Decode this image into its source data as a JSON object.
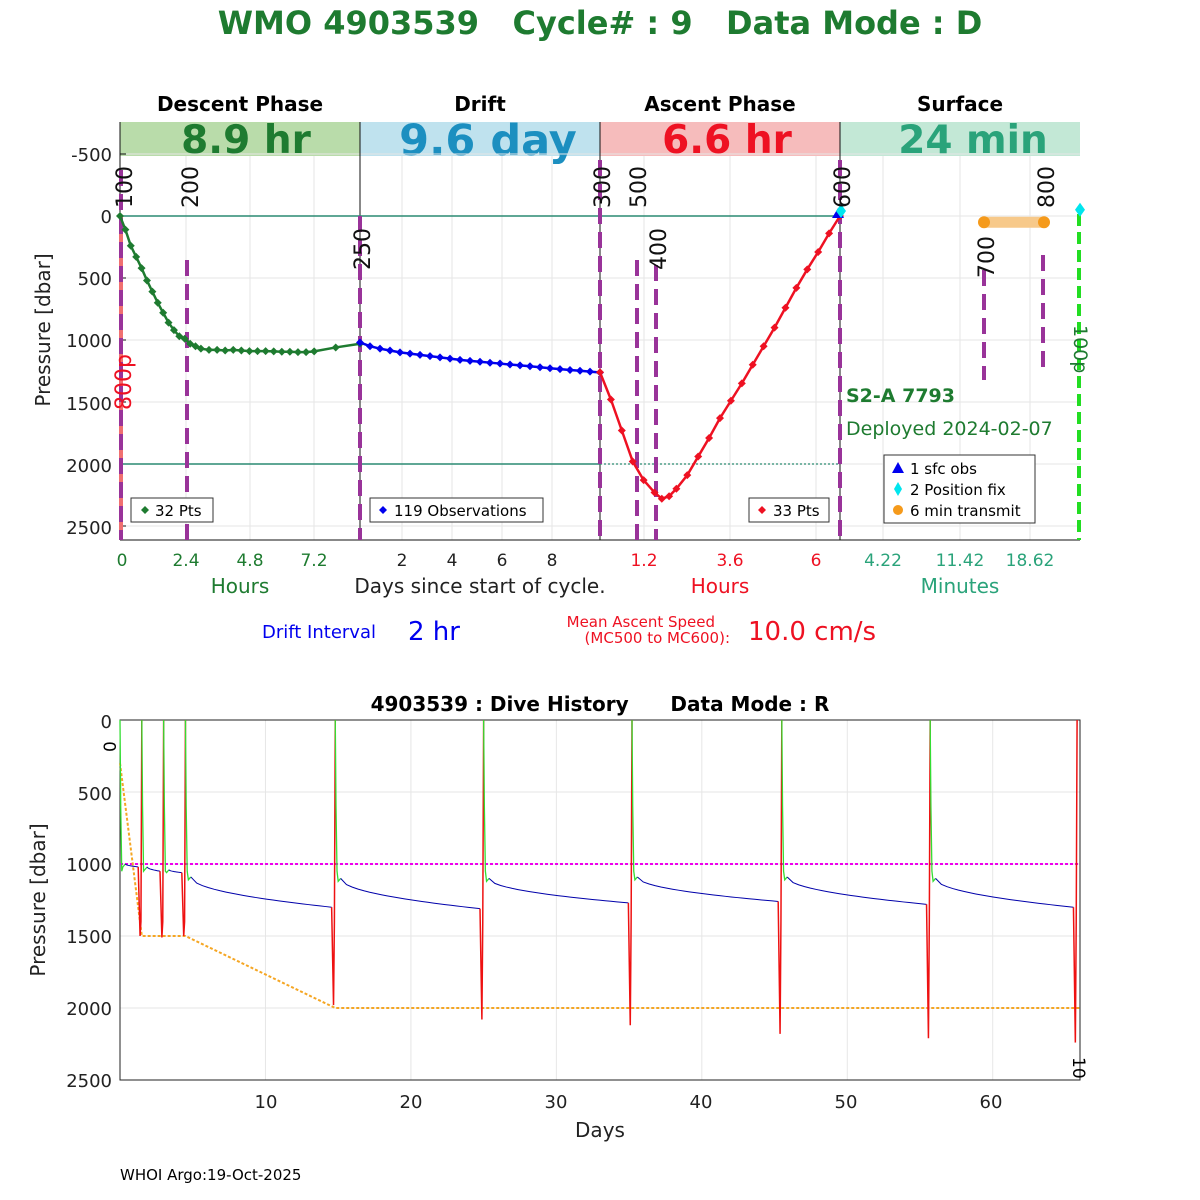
{
  "header": {
    "title": "WMO 4903539   Cycle# : 9   Data Mode : D",
    "title_color": "#1e7b30"
  },
  "panels": [
    {
      "key": "descent",
      "label": "Descent Phase",
      "duration": "8.9 hr",
      "band_color": "#b9dcaa",
      "text_color": "#1e7b30"
    },
    {
      "key": "drift",
      "label": "Drift",
      "duration": "9.6 day",
      "band_color": "#bfe2ee",
      "text_color": "#1c8fc0"
    },
    {
      "key": "ascent",
      "label": "Ascent Phase",
      "duration": "6.6 hr",
      "band_color": "#f6bcbc",
      "text_color": "#ee1122"
    },
    {
      "key": "surface",
      "label": "Surface",
      "duration": "24 min",
      "band_color": "#c3e8d6",
      "text_color": "#2aa37a"
    }
  ],
  "top_axes": {
    "ylabel": "Pressure [dbar]",
    "yticks": [
      "-500",
      "0",
      "500",
      "1000",
      "1500",
      "2000",
      "2500"
    ],
    "x_tick_groups": [
      {
        "panel": "descent",
        "ticks": [
          "0",
          "2.4",
          "4.8",
          "7.2"
        ],
        "color": "#1e7b30"
      },
      {
        "panel": "drift",
        "ticks": [
          "2",
          "4",
          "6",
          "8"
        ],
        "color": "#222222"
      },
      {
        "panel": "ascent",
        "ticks": [
          "1.2",
          "3.6",
          "6"
        ],
        "color": "#ee1122"
      },
      {
        "panel": "surface",
        "ticks": [
          "4.22",
          "11.42",
          "18.62"
        ],
        "color": "#2aa37a"
      }
    ],
    "x_unit_labels": [
      {
        "text": "Hours",
        "color": "#1e7b30"
      },
      {
        "text": "Days since start of cycle.",
        "color": "#222222"
      },
      {
        "text": "Hours",
        "color": "#ee1122"
      },
      {
        "text": "Minutes",
        "color": "#2aa37a"
      }
    ],
    "mission_codes": [
      "100",
      "200",
      "250",
      "300",
      "500",
      "400",
      "600",
      "700",
      "800",
      "100p",
      "800p"
    ],
    "float_name": "S2-A 7793",
    "deploy_text": "Deployed 2024-02-07",
    "legends": [
      {
        "text": "32 Pts",
        "color": "#1e7b30"
      },
      {
        "text": "119 Observations",
        "color": "#0000ee"
      },
      {
        "text": "33 Pts",
        "color": "#ee1122"
      }
    ],
    "surface_legend": [
      {
        "text": "1 sfc obs",
        "color": "#0000ee",
        "marker": "triangle"
      },
      {
        "text": "2 Position fix",
        "color": "#00e5ee",
        "marker": "diamond"
      },
      {
        "text": "6 min transmit",
        "color": "#f59a1b",
        "marker": "circle"
      }
    ]
  },
  "info": {
    "drift_label": "Drift Interval",
    "drift_value": "2 hr",
    "ascent_label_line1": "Mean Ascent Speed",
    "ascent_label_line2": "(MC500 to MC600):",
    "ascent_value": "10.0 cm/s"
  },
  "bottom": {
    "title": "4903539 : Dive History      Data Mode : R",
    "xlabel": "Days",
    "ylabel": "Pressure [dbar]",
    "xticks": [
      "10",
      "20",
      "30",
      "40",
      "50",
      "60"
    ],
    "yticks": [
      "0",
      "500",
      "1000",
      "1500",
      "2000",
      "2500"
    ],
    "start_label": "0",
    "end_label": "10"
  },
  "footer": "WHOI Argo:19-Oct-2025",
  "chart_data": [
    {
      "type": "line",
      "title": "",
      "ylabel": "Pressure [dbar]",
      "ylim": [
        2600,
        -600
      ],
      "y_reversed": true,
      "grid": true,
      "segments": {
        "descent": {
          "xunit": "hours",
          "xlim": [
            0,
            8.9
          ],
          "series": [
            {
              "name": "32 Pts",
              "color": "#1e7b30",
              "x": [
                0,
                0.2,
                0.4,
                0.6,
                0.8,
                1.0,
                1.2,
                1.4,
                1.6,
                1.8,
                2.0,
                2.2,
                2.4,
                2.6,
                2.8,
                3.0,
                3.3,
                3.6,
                3.9,
                4.2,
                4.5,
                4.8,
                5.1,
                5.4,
                5.7,
                6.0,
                6.3,
                6.6,
                6.9,
                7.2,
                8.0,
                8.9
              ],
              "y": [
                0,
                110,
                240,
                330,
                420,
                520,
                610,
                700,
                780,
                860,
                920,
                970,
                990,
                1030,
                1050,
                1070,
                1080,
                1080,
                1085,
                1080,
                1085,
                1090,
                1090,
                1090,
                1092,
                1095,
                1095,
                1098,
                1098,
                1092,
                1060,
                1030
              ]
            }
          ]
        },
        "drift": {
          "xunit": "days",
          "xlim": [
            0,
            9.6
          ],
          "series": [
            {
              "name": "119 Observations",
              "color": "#0000ee",
              "x": [
                0,
                0.4,
                0.8,
                1.2,
                1.6,
                2.0,
                2.4,
                2.8,
                3.2,
                3.6,
                4.0,
                4.4,
                4.8,
                5.2,
                5.6,
                6.0,
                6.4,
                6.8,
                7.2,
                7.6,
                8.0,
                8.4,
                8.8,
                9.2,
                9.6
              ],
              "y": [
                1020,
                1050,
                1070,
                1085,
                1100,
                1110,
                1120,
                1130,
                1140,
                1150,
                1160,
                1168,
                1175,
                1183,
                1190,
                1198,
                1205,
                1212,
                1220,
                1228,
                1235,
                1242,
                1248,
                1255,
                1262
              ]
            }
          ]
        },
        "ascent": {
          "xunit": "hours",
          "xlim": [
            0,
            6.6
          ],
          "series": [
            {
              "name": "33 Pts",
              "color": "#ee1122",
              "x": [
                0,
                0.3,
                0.6,
                0.9,
                1.2,
                1.5,
                1.7,
                1.9,
                2.1,
                2.4,
                2.7,
                3.0,
                3.3,
                3.6,
                3.9,
                4.2,
                4.5,
                4.8,
                5.1,
                5.4,
                5.7,
                6.0,
                6.3,
                6.6
              ],
              "y": [
                1260,
                1480,
                1730,
                1980,
                2130,
                2230,
                2280,
                2260,
                2200,
                2090,
                1940,
                1790,
                1630,
                1490,
                1350,
                1200,
                1050,
                900,
                740,
                580,
                430,
                290,
                140,
                0
              ]
            }
          ]
        },
        "surface": {
          "xunit": "minutes",
          "xlim": [
            0,
            24
          ],
          "series": [
            {
              "name": "6 min transmit",
              "color": "#f59a1b",
              "x": [
                14.4,
                20.4
              ],
              "y": [
                50,
                50
              ]
            },
            {
              "name": "1 sfc obs",
              "color": "#0000ee",
              "x": [
                0
              ],
              "y": [
                0
              ]
            },
            {
              "name": "2 Position fix",
              "color": "#00e5ee",
              "x": [
                0.1,
                24.0
              ],
              "y": [
                -40,
                -50
              ]
            }
          ]
        }
      }
    },
    {
      "type": "line",
      "title": "4903539 : Dive History      Data Mode : R",
      "xlabel": "Days",
      "ylabel": "Pressure [dbar]",
      "xlim": [
        0,
        66
      ],
      "ylim": [
        2500,
        0
      ],
      "y_reversed": true,
      "grid": true,
      "park_target": 1000,
      "profile_target": {
        "x": [
          0,
          1.5,
          4.5,
          14.8,
          66
        ],
        "y": [
          300,
          1500,
          1500,
          2000,
          2000
        ]
      },
      "cycles": [
        {
          "start": 0.0,
          "end": 1.5,
          "park_start": 1000,
          "park_end": 1020,
          "profile_depth": 1500
        },
        {
          "start": 1.5,
          "end": 3.0,
          "park_start": 1020,
          "park_end": 1050,
          "profile_depth": 1510
        },
        {
          "start": 3.0,
          "end": 4.5,
          "park_start": 1040,
          "park_end": 1060,
          "profile_depth": 1500
        },
        {
          "start": 4.5,
          "end": 14.8,
          "park_start": 1090,
          "park_end": 1300,
          "profile_depth": 1980
        },
        {
          "start": 14.8,
          "end": 25.0,
          "park_start": 1100,
          "park_end": 1310,
          "profile_depth": 2080
        },
        {
          "start": 25.0,
          "end": 35.2,
          "park_start": 1100,
          "park_end": 1270,
          "profile_depth": 2120
        },
        {
          "start": 35.2,
          "end": 45.5,
          "park_start": 1090,
          "park_end": 1260,
          "profile_depth": 2180
        },
        {
          "start": 45.5,
          "end": 55.7,
          "park_start": 1090,
          "park_end": 1280,
          "profile_depth": 2210
        },
        {
          "start": 55.7,
          "end": 65.8,
          "park_start": 1100,
          "park_end": 1300,
          "profile_depth": 2240
        }
      ]
    }
  ]
}
